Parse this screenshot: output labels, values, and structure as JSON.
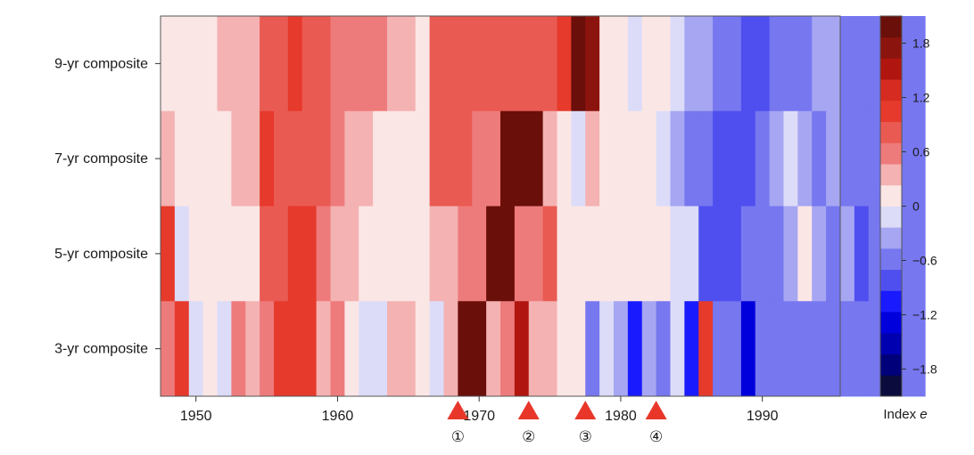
{
  "chart_data": {
    "type": "heatmap",
    "title": "",
    "xlabel": "",
    "ylabel": "",
    "x_start_year": 1947.5,
    "year_step": 1,
    "xlim": [
      1947.5,
      1995.5
    ],
    "xticks": [
      1950,
      1960,
      1970,
      1980,
      1990
    ],
    "xtick_labels": [
      "1950",
      "1960",
      "1970",
      "1980",
      "1990"
    ],
    "rows": [
      {
        "name": "9-yr composite",
        "values": [
          0.1,
          0.1,
          0.1,
          0.1,
          0.3,
          0.3,
          0.3,
          0.7,
          0.7,
          1.0,
          0.8,
          0.8,
          0.6,
          0.6,
          0.6,
          0.6,
          0.3,
          0.3,
          0.1,
          0.7,
          0.7,
          0.7,
          0.7,
          0.7,
          0.7,
          0.7,
          0.7,
          0.7,
          1.0,
          2.0,
          1.7,
          0.1,
          0.1,
          -0.1,
          0.1,
          0.1,
          -0.1,
          -0.4,
          -0.4,
          -0.6,
          -0.6,
          -0.8,
          -0.8,
          -0.6,
          -0.6,
          -0.6,
          -0.4,
          -0.4,
          -0.6,
          -0.6,
          -0.6,
          -0.6,
          -0.6,
          -0.6
        ]
      },
      {
        "name": "7-yr composite",
        "values": [
          0.3,
          0.1,
          0.1,
          0.1,
          0.1,
          0.3,
          0.3,
          1.0,
          0.8,
          0.8,
          0.8,
          0.8,
          0.6,
          0.3,
          0.3,
          0.1,
          0.1,
          0.1,
          0.1,
          0.8,
          0.8,
          0.8,
          0.6,
          0.6,
          1.9,
          1.9,
          2.0,
          0.3,
          0.1,
          -0.1,
          0.3,
          0.1,
          0.1,
          0.1,
          0.1,
          -0.1,
          -0.4,
          -0.6,
          -0.6,
          -0.8,
          -0.8,
          -0.8,
          -0.6,
          -0.4,
          -0.1,
          -0.4,
          -0.6,
          -0.4,
          -0.6,
          -0.6,
          -0.6,
          -0.6,
          -0.6,
          -0.6
        ]
      },
      {
        "name": "5-yr composite",
        "values": [
          1.0,
          -0.1,
          0.1,
          0.1,
          0.1,
          0.1,
          0.1,
          0.8,
          0.8,
          1.0,
          1.0,
          0.6,
          0.3,
          0.3,
          0.1,
          0.1,
          0.1,
          0.1,
          0.1,
          0.3,
          0.3,
          0.6,
          0.6,
          1.9,
          1.9,
          0.6,
          0.6,
          0.8,
          0.1,
          0.1,
          0.1,
          0.1,
          0.1,
          0.1,
          0.1,
          0.1,
          -0.1,
          -0.1,
          -0.8,
          -0.8,
          -0.8,
          -0.6,
          -0.6,
          -0.6,
          -0.4,
          0.1,
          -0.4,
          -0.6,
          -0.4,
          -0.8,
          -0.6,
          -0.6,
          -0.6,
          -0.6
        ]
      },
      {
        "name": "3-yr composite",
        "values": [
          0.6,
          1.0,
          -0.1,
          0.1,
          -0.1,
          0.6,
          0.3,
          0.6,
          1.1,
          1.0,
          1.0,
          0.3,
          0.6,
          0.1,
          -0.1,
          -0.1,
          0.3,
          0.3,
          0.1,
          -0.1,
          0.3,
          1.9,
          1.9,
          0.3,
          0.6,
          1.6,
          0.3,
          0.3,
          0.1,
          0.1,
          -0.6,
          -0.1,
          -0.4,
          -1.1,
          -0.4,
          -0.6,
          -0.1,
          -1.0,
          1.0,
          -0.6,
          -0.6,
          -1.4,
          -0.6,
          -0.6,
          -0.6,
          -0.6,
          -0.6,
          -0.6,
          -0.6,
          -0.6,
          -0.6,
          -0.6,
          -0.6,
          -0.6
        ]
      }
    ],
    "colorbar": {
      "label_text": "Index ",
      "label_symbol": "e",
      "range": [
        -2.1,
        2.1
      ],
      "ticks": [
        1.8,
        1.2,
        0.6,
        0,
        -0.6,
        -1.2,
        -1.8
      ],
      "tick_labels": [
        "1.8",
        "1.2",
        "0.6",
        "0",
        "−0.6",
        "−1.2",
        "−1.8"
      ],
      "colors": [
        "#0b0b3d",
        "#00007a",
        "#0000b0",
        "#0000dd",
        "#1a1aff",
        "#4f4ff0",
        "#7777f0",
        "#a6a6f2",
        "#dcdcf8",
        "#fbe6e6",
        "#f4b2b2",
        "#ee7b7b",
        "#e95a52",
        "#e63a2c",
        "#d62b20",
        "#b0160f",
        "#8c140e",
        "#6a0f0a"
      ]
    },
    "events": [
      {
        "label": "①",
        "year": 1968.5
      },
      {
        "label": "②",
        "year": 1973.5
      },
      {
        "label": "③",
        "year": 1977.5
      },
      {
        "label": "④",
        "year": 1982.5
      }
    ],
    "marker_color": "#e8372a"
  }
}
